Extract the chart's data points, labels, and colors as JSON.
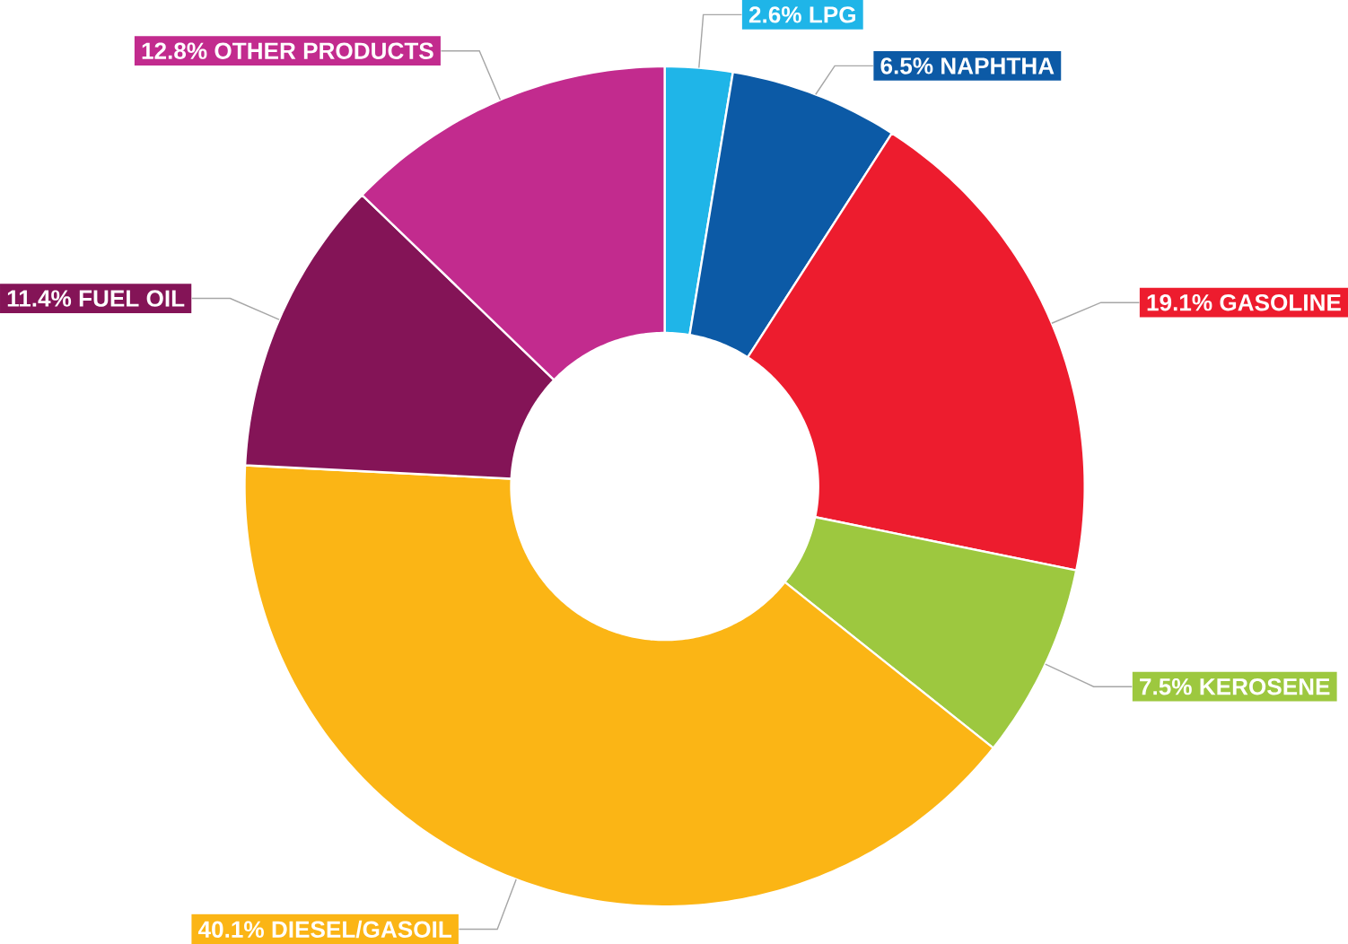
{
  "chart_data": {
    "type": "donut",
    "categories": [
      "LPG",
      "NAPHTHA",
      "GASOLINE",
      "KEROSENE",
      "DIESEL/GASOIL",
      "FUEL OIL",
      "OTHER PRODUCTS"
    ],
    "values": [
      2.6,
      6.5,
      19.1,
      7.5,
      40.1,
      11.4,
      12.8
    ],
    "value_labels": [
      "2.6%",
      "6.5%",
      "19.1%",
      "7.5%",
      "40.1%",
      "11.4%",
      "12.8%"
    ],
    "colors": [
      "#1fb5e8",
      "#0c5aa6",
      "#ed1c2e",
      "#9dc83f",
      "#fbb515",
      "#841457",
      "#c22b8e"
    ]
  }
}
